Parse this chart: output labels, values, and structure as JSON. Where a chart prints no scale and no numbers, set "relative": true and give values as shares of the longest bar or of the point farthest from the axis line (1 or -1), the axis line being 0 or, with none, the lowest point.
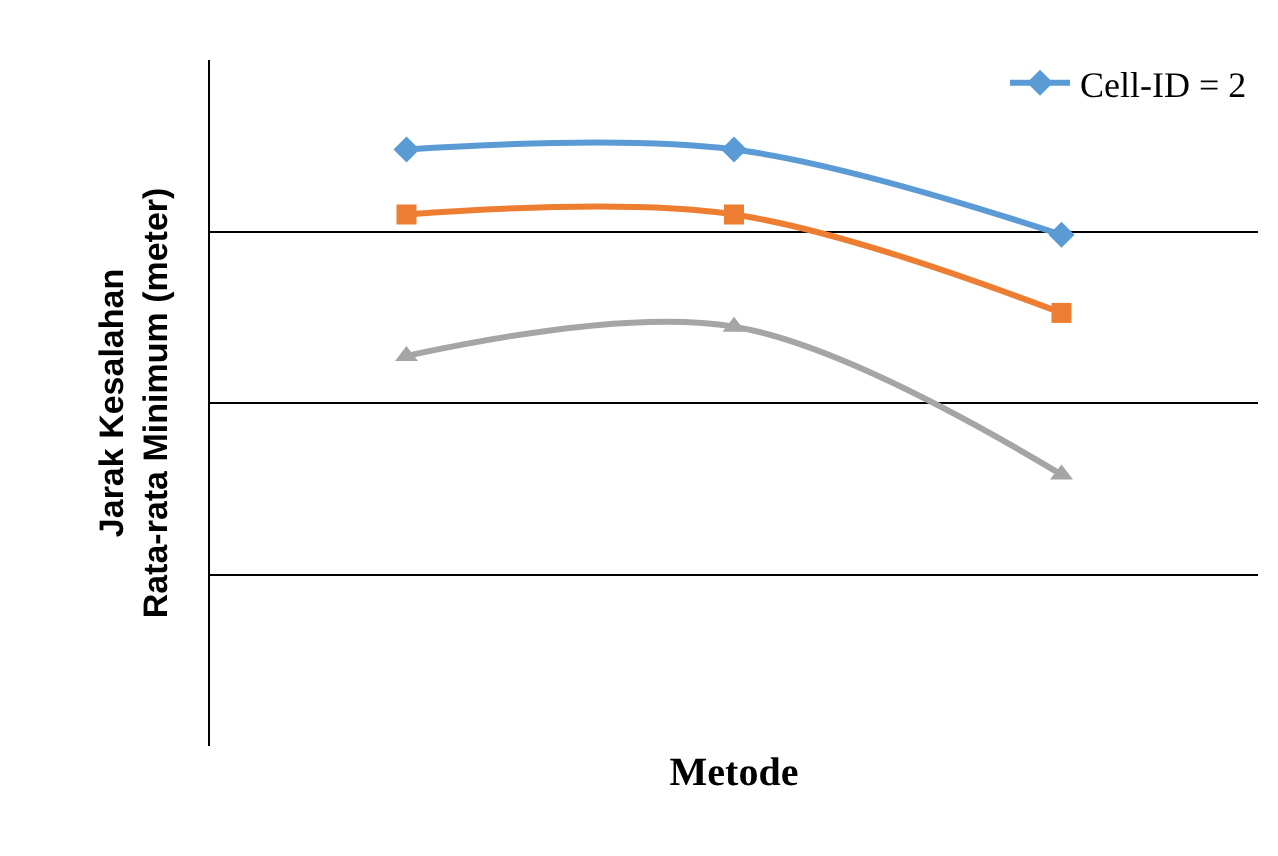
{
  "chart_data": {
    "type": "line",
    "relative": true,
    "xlabel": "Metode",
    "ylabel": "Jarak Kesalahan Rata-rata Minimum (meter)",
    "categories": [
      null,
      null,
      null
    ],
    "grid": "y",
    "legend": "top right",
    "series": [
      {
        "name": "Cell-ID = 2",
        "color": "#5b9bd5",
        "marker": "diamond",
        "values": [
          1,
          1,
          0.857
        ]
      },
      {
        "color": "#ed7d31",
        "marker": "square",
        "values": [
          0.891,
          0.891,
          0.726
        ]
      },
      {
        "color": "#a5a5a5",
        "marker": "triangle",
        "values": [
          0.654,
          0.703,
          0.455
        ]
      }
    ]
  }
}
